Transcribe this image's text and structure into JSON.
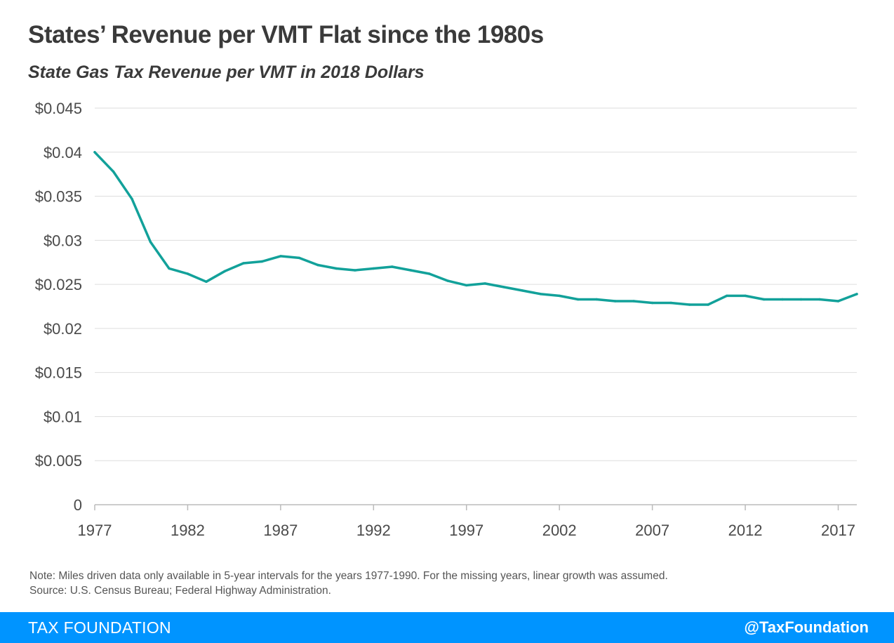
{
  "header": {
    "title": "States’ Revenue per VMT Flat since the 1980s",
    "subtitle": "State Gas Tax Revenue per VMT in 2018 Dollars"
  },
  "notes": {
    "note": "Note: Miles driven data only available in 5-year intervals for the years 1977-1990. For the missing years, linear growth was assumed.",
    "source": "Source: U.S. Census Bureau; Federal Highway Administration."
  },
  "footer": {
    "brand": "TAX FOUNDATION",
    "handle": "@TaxFoundation"
  },
  "colors": {
    "line": "#12a19a",
    "gridline": "#dedede",
    "footer_bar": "#0094ff",
    "title_text": "#3a3a3a"
  },
  "chart_data": {
    "type": "line",
    "title": "States’ Revenue per VMT Flat since the 1980s",
    "subtitle": "State Gas Tax Revenue per VMT in 2018 Dollars",
    "xlabel": "",
    "ylabel": "",
    "xlim": [
      1977,
      2018
    ],
    "ylim": [
      0,
      0.045
    ],
    "grid": true,
    "legend": "none",
    "x_ticks": [
      1977,
      1982,
      1987,
      1992,
      1997,
      2002,
      2007,
      2012,
      2017
    ],
    "x_tick_labels": [
      "1977",
      "1982",
      "1987",
      "1992",
      "1997",
      "2002",
      "2007",
      "2012",
      "2017"
    ],
    "y_ticks": [
      0,
      0.005,
      0.01,
      0.015,
      0.02,
      0.025,
      0.03,
      0.035,
      0.04,
      0.045
    ],
    "y_tick_labels": [
      "0",
      "$0.005",
      "$0.01",
      "$0.015",
      "$0.02",
      "$0.025",
      "$0.03",
      "$0.035",
      "$0.04",
      "$0.045"
    ],
    "x": [
      1977,
      1978,
      1979,
      1980,
      1981,
      1982,
      1983,
      1984,
      1985,
      1986,
      1987,
      1988,
      1989,
      1990,
      1991,
      1992,
      1993,
      1994,
      1995,
      1996,
      1997,
      1998,
      1999,
      2000,
      2001,
      2002,
      2003,
      2004,
      2005,
      2006,
      2007,
      2008,
      2009,
      2010,
      2011,
      2012,
      2013,
      2014,
      2015,
      2016,
      2017,
      2018
    ],
    "y": [
      0.04,
      0.0378,
      0.0347,
      0.0298,
      0.0268,
      0.0262,
      0.0253,
      0.0265,
      0.0274,
      0.0276,
      0.0282,
      0.028,
      0.0272,
      0.0268,
      0.0266,
      0.0268,
      0.027,
      0.0266,
      0.0262,
      0.0254,
      0.0249,
      0.0251,
      0.0247,
      0.0243,
      0.0239,
      0.0237,
      0.0233,
      0.0233,
      0.0231,
      0.0231,
      0.0229,
      0.0229,
      0.0227,
      0.0227,
      0.0237,
      0.0237,
      0.0233,
      0.0233,
      0.0233,
      0.0233,
      0.0231,
      0.0239
    ]
  }
}
